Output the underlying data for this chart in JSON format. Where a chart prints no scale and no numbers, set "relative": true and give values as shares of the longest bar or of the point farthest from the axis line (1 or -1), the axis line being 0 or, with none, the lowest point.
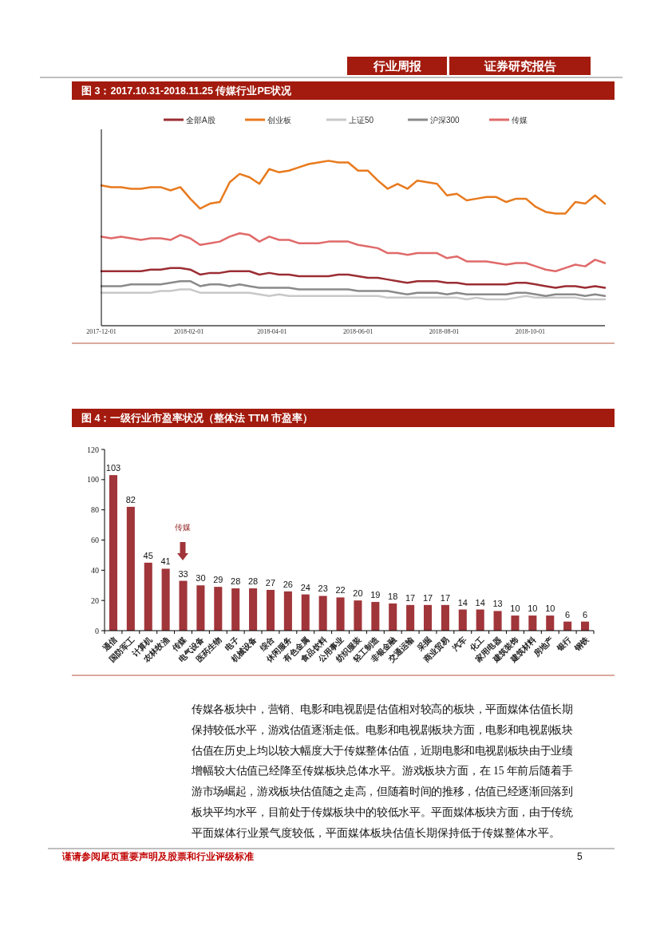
{
  "chart_data": [
    {
      "type": "other",
      "annotations": [
        "行业周报",
        "证券研究报告"
      ]
    },
    {
      "type": "line",
      "title": "图 3：2017.10.31-2018.11.25 传媒行业PE状况",
      "relative": true,
      "legend": "top",
      "x": [
        "2017-12-01",
        "2017-12-08",
        "2017-12-15",
        "2017-12-22",
        "2017-12-29",
        "2018-01-05",
        "2018-01-12",
        "2018-01-19",
        "2018-01-26",
        "2018-02-02",
        "2018-02-09",
        "2018-02-16",
        "2018-02-23",
        "2018-03-02",
        "2018-03-09",
        "2018-03-16",
        "2018-03-23",
        "2018-03-30",
        "2018-04-06",
        "2018-04-13",
        "2018-04-20",
        "2018-04-27",
        "2018-05-04",
        "2018-05-11",
        "2018-05-18",
        "2018-05-25",
        "2018-06-01",
        "2018-06-08",
        "2018-06-15",
        "2018-06-22",
        "2018-06-29",
        "2018-07-06",
        "2018-07-13",
        "2018-07-20",
        "2018-07-27",
        "2018-08-03",
        "2018-08-10",
        "2018-08-17",
        "2018-08-24",
        "2018-08-31",
        "2018-09-07",
        "2018-09-14",
        "2018-09-21",
        "2018-09-28",
        "2018-10-05",
        "2018-10-12",
        "2018-10-19",
        "2018-10-26",
        "2018-11-02",
        "2018-11-09",
        "2018-11-16",
        "2018-11-23"
      ],
      "xlim": [
        "2017-12-01",
        "2018-11-23"
      ],
      "xticks": [
        "2017-12-01",
        "2018-02-01",
        "2018-04-01",
        "2018-06-01",
        "2018-08-01",
        "2018-10-01"
      ],
      "series": [
        {
          "name": "全部A股",
          "color": "#9b2d33",
          "values": [
            0.33,
            0.33,
            0.33,
            0.33,
            0.33,
            0.34,
            0.34,
            0.35,
            0.35,
            0.34,
            0.31,
            0.32,
            0.32,
            0.33,
            0.33,
            0.33,
            0.31,
            0.32,
            0.31,
            0.31,
            0.3,
            0.3,
            0.3,
            0.3,
            0.31,
            0.31,
            0.3,
            0.29,
            0.29,
            0.28,
            0.27,
            0.26,
            0.27,
            0.27,
            0.27,
            0.26,
            0.26,
            0.25,
            0.25,
            0.25,
            0.25,
            0.25,
            0.26,
            0.26,
            0.25,
            0.24,
            0.23,
            0.24,
            0.24,
            0.23,
            0.24,
            0.23
          ]
        },
        {
          "name": "创业板",
          "color": "#e87a1e",
          "values": [
            0.85,
            0.84,
            0.84,
            0.83,
            0.83,
            0.84,
            0.84,
            0.82,
            0.84,
            0.77,
            0.71,
            0.74,
            0.75,
            0.87,
            0.92,
            0.9,
            0.86,
            0.95,
            0.93,
            0.94,
            0.96,
            0.98,
            0.99,
            1.0,
            0.99,
            0.99,
            0.94,
            0.94,
            0.88,
            0.83,
            0.86,
            0.83,
            0.88,
            0.87,
            0.86,
            0.79,
            0.8,
            0.76,
            0.77,
            0.78,
            0.78,
            0.75,
            0.77,
            0.77,
            0.72,
            0.69,
            0.68,
            0.68,
            0.75,
            0.74,
            0.79,
            0.74
          ]
        },
        {
          "name": "上证50",
          "color": "#c8c8c8",
          "values": [
            0.2,
            0.2,
            0.2,
            0.2,
            0.2,
            0.2,
            0.21,
            0.21,
            0.22,
            0.22,
            0.2,
            0.2,
            0.2,
            0.2,
            0.2,
            0.2,
            0.19,
            0.18,
            0.19,
            0.18,
            0.18,
            0.18,
            0.18,
            0.18,
            0.18,
            0.18,
            0.18,
            0.18,
            0.18,
            0.17,
            0.17,
            0.17,
            0.17,
            0.17,
            0.17,
            0.17,
            0.17,
            0.16,
            0.17,
            0.16,
            0.16,
            0.16,
            0.17,
            0.18,
            0.17,
            0.17,
            0.17,
            0.17,
            0.17,
            0.16,
            0.16,
            0.16
          ]
        },
        {
          "name": "沪深300",
          "color": "#8a8a8a",
          "values": [
            0.24,
            0.24,
            0.24,
            0.25,
            0.25,
            0.25,
            0.25,
            0.26,
            0.27,
            0.27,
            0.24,
            0.25,
            0.25,
            0.24,
            0.25,
            0.24,
            0.23,
            0.23,
            0.23,
            0.23,
            0.22,
            0.22,
            0.22,
            0.22,
            0.22,
            0.22,
            0.21,
            0.21,
            0.21,
            0.21,
            0.2,
            0.19,
            0.2,
            0.2,
            0.2,
            0.19,
            0.2,
            0.19,
            0.19,
            0.19,
            0.19,
            0.19,
            0.2,
            0.2,
            0.19,
            0.18,
            0.19,
            0.19,
            0.19,
            0.18,
            0.19,
            0.18
          ]
        },
        {
          "name": "传媒",
          "color": "#e06a6a",
          "values": [
            0.54,
            0.53,
            0.54,
            0.53,
            0.52,
            0.53,
            0.53,
            0.52,
            0.55,
            0.53,
            0.49,
            0.5,
            0.51,
            0.54,
            0.56,
            0.55,
            0.51,
            0.54,
            0.52,
            0.52,
            0.5,
            0.5,
            0.5,
            0.51,
            0.51,
            0.51,
            0.49,
            0.48,
            0.47,
            0.44,
            0.44,
            0.43,
            0.44,
            0.44,
            0.44,
            0.41,
            0.42,
            0.39,
            0.39,
            0.39,
            0.38,
            0.37,
            0.38,
            0.38,
            0.36,
            0.34,
            0.33,
            0.35,
            0.37,
            0.36,
            0.4,
            0.38
          ]
        }
      ]
    },
    {
      "type": "bar",
      "title": "图 4：一级行业市盈率状况（整体法 TTM 市盈率）",
      "categories": [
        "通信",
        "国防军工",
        "计算机",
        "农林牧渔",
        "传媒",
        "电气设备",
        "医药生物",
        "电子",
        "机械设备",
        "综合",
        "休闲服务",
        "有色金属",
        "食品饮料",
        "公用事业",
        "纺织服装",
        "轻工制造",
        "非银金融",
        "交通运输",
        "采掘",
        "商业贸易",
        "汽车",
        "化工",
        "家用电器",
        "建筑装饰",
        "建筑材料",
        "房地产",
        "银行",
        "钢铁"
      ],
      "values": [
        103,
        82,
        45,
        41,
        33,
        30,
        29,
        28,
        28,
        27,
        26,
        24,
        23,
        22,
        20,
        19,
        18,
        17,
        17,
        17,
        14,
        14,
        13,
        10,
        10,
        10,
        6,
        6
      ],
      "color": "#a0353a",
      "ylim": [
        0,
        120
      ],
      "yticks": [
        0,
        20,
        40,
        60,
        80,
        100,
        120
      ],
      "data_labels": true,
      "annotations": [
        "传媒"
      ]
    },
    {
      "type": "other",
      "annotations": [
        "传媒各板块中，营销、电影和电视剧是估值相对较高的板块，平面媒体估值长期保持较低水平，游戏估值逐渐走低。电影和电视剧板块方面，电影和电视剧板块估值在历史上均以较大幅度大于传媒整体估值，近期电影和电视剧板块由于业绩增幅较大估值已经降至传媒板块总体水平。游戏板块方面，在 15 年前后随着手游市场崛起，游戏板块估值随之走高，但随着时间的推移，估值已经逐渐回落到板块平均水平，目前处于传媒板块中的较低水平。平面媒体板块方面，由于传统平面媒体行业景气度较低，平面媒体板块估值长期保持低于传媒整体水平。",
        "谨请参阅尾页重要声明及股票和行业评级标准",
        "5"
      ]
    }
  ]
}
